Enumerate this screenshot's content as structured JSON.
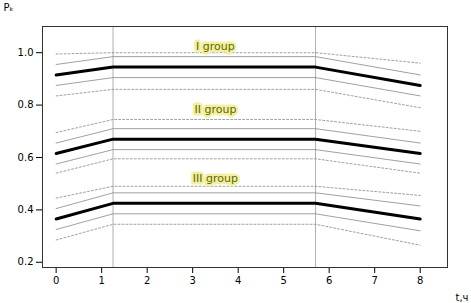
{
  "chart_data": {
    "type": "line",
    "xlabel": "t,ч",
    "ylabel": "Pₖ",
    "x": [
      0.0,
      1.25,
      5.7,
      8.0
    ],
    "xlim": [
      -0.3,
      8.6
    ],
    "xticks": [
      0,
      1,
      2,
      3,
      4,
      5,
      6,
      7,
      8
    ],
    "ylim": [
      0.18,
      1.1
    ],
    "yticks": [
      0.2,
      0.4,
      0.6,
      0.8,
      {
        "value": 1.0,
        "label": "1.0"
      }
    ],
    "series": [
      {
        "color": "#888888",
        "line_style": "dotted",
        "values": [
          0.995,
          1.0,
          1.0,
          0.96
        ]
      },
      {
        "color": "#888888",
        "line_style": "dotted",
        "values": [
          0.835,
          0.86,
          0.86,
          0.79
        ]
      },
      {
        "color": "#888888",
        "line_style": "solid",
        "values": [
          0.955,
          0.985,
          0.985,
          0.915
        ]
      },
      {
        "color": "#888888",
        "line_style": "solid",
        "values": [
          0.875,
          0.905,
          0.905,
          0.835
        ]
      },
      {
        "color": "black",
        "line_style": "solid",
        "values": [
          0.915,
          0.945,
          0.945,
          0.875
        ]
      },
      {
        "color": "#888888",
        "line_style": "dotted",
        "values": [
          0.695,
          0.745,
          0.745,
          0.7
        ]
      },
      {
        "color": "#888888",
        "line_style": "dotted",
        "values": [
          0.54,
          0.595,
          0.595,
          0.54
        ]
      },
      {
        "color": "#888888",
        "line_style": "solid",
        "values": [
          0.655,
          0.71,
          0.71,
          0.655
        ]
      },
      {
        "color": "#888888",
        "line_style": "solid",
        "values": [
          0.575,
          0.63,
          0.63,
          0.575
        ]
      },
      {
        "color": "black",
        "line_style": "solid",
        "values": [
          0.615,
          0.67,
          0.67,
          0.615
        ]
      },
      {
        "color": "#888888",
        "line_style": "dotted",
        "values": [
          0.445,
          0.49,
          0.49,
          0.455
        ]
      },
      {
        "color": "#888888",
        "line_style": "dotted",
        "values": [
          0.285,
          0.345,
          0.345,
          0.265
        ]
      },
      {
        "color": "#888888",
        "line_style": "solid",
        "values": [
          0.405,
          0.465,
          0.465,
          0.415
        ]
      },
      {
        "color": "#888888",
        "line_style": "solid",
        "values": [
          0.325,
          0.385,
          0.385,
          0.32
        ]
      },
      {
        "color": "black",
        "line_style": "solid",
        "values": [
          0.365,
          0.425,
          0.425,
          0.365
        ]
      }
    ],
    "vlines": [
      {
        "x": 1.25,
        "color": "#999999"
      },
      {
        "x": 5.7,
        "color": "#999999"
      }
    ],
    "annotations": [
      {
        "text": "I group",
        "x": 3.5,
        "y": 1.025,
        "color": "#666600"
      },
      {
        "text": "II group",
        "x": 3.5,
        "y": 0.785,
        "color": "#666600"
      },
      {
        "text": "III group",
        "x": 3.5,
        "y": 0.52,
        "color": "#666600"
      }
    ],
    "grid": false
  }
}
